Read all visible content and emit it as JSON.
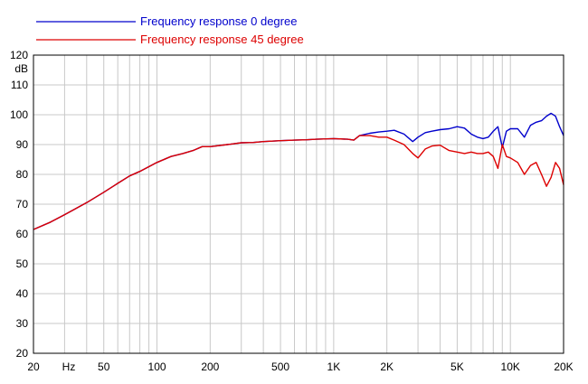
{
  "chart_data": {
    "type": "line",
    "title": "",
    "xlabel": "",
    "ylabel": "dB",
    "x_scale": "log",
    "x_unit_label": "Hz",
    "xlim": [
      20,
      20000
    ],
    "ylim": [
      20,
      120
    ],
    "grid": true,
    "legend_position": "top-left",
    "x_ticks": [
      {
        "value": 20,
        "label": "20"
      },
      {
        "value": 50,
        "label": "50"
      },
      {
        "value": 100,
        "label": "100"
      },
      {
        "value": 200,
        "label": "200"
      },
      {
        "value": 500,
        "label": "500"
      },
      {
        "value": 1000,
        "label": "1K"
      },
      {
        "value": 2000,
        "label": "2K"
      },
      {
        "value": 5000,
        "label": "5K"
      },
      {
        "value": 10000,
        "label": "10K"
      },
      {
        "value": 20000,
        "label": "20K"
      }
    ],
    "y_ticks": [
      {
        "value": 120,
        "label": "120"
      },
      {
        "value": 110,
        "label": "110"
      },
      {
        "value": 100,
        "label": "100"
      },
      {
        "value": 90,
        "label": "90"
      },
      {
        "value": 80,
        "label": "80"
      },
      {
        "value": 70,
        "label": "70"
      },
      {
        "value": 60,
        "label": "60"
      },
      {
        "value": 50,
        "label": "50"
      },
      {
        "value": 40,
        "label": "40"
      },
      {
        "value": 30,
        "label": "30"
      },
      {
        "value": 20,
        "label": "20"
      }
    ],
    "series": [
      {
        "name": "Frequency response 0 degree",
        "color": "#0000cc",
        "x": [
          20,
          25,
          30,
          40,
          50,
          60,
          70,
          80,
          100,
          120,
          140,
          160,
          180,
          200,
          250,
          300,
          350,
          400,
          500,
          600,
          700,
          800,
          1000,
          1200,
          1300,
          1400,
          1600,
          1800,
          2000,
          2200,
          2500,
          2800,
          3000,
          3300,
          3600,
          4000,
          4500,
          5000,
          5500,
          6000,
          6500,
          7000,
          7500,
          8000,
          8500,
          9000,
          9500,
          10000,
          11000,
          12000,
          13000,
          14000,
          15000,
          16000,
          17000,
          18000,
          19000,
          20000
        ],
        "y": [
          61.5,
          64.0,
          66.5,
          70.5,
          74.0,
          77.0,
          79.5,
          81.0,
          84.0,
          86.0,
          87.0,
          88.0,
          89.3,
          89.3,
          90.0,
          90.6,
          90.7,
          91.0,
          91.3,
          91.5,
          91.6,
          91.8,
          92.0,
          91.8,
          91.5,
          93.0,
          93.8,
          94.2,
          94.5,
          94.8,
          93.5,
          91.0,
          92.5,
          94.0,
          94.5,
          95.0,
          95.3,
          96.0,
          95.5,
          93.5,
          92.5,
          92.0,
          92.5,
          94.5,
          96.0,
          89.0,
          94.5,
          95.3,
          95.3,
          92.5,
          96.5,
          97.5,
          98.0,
          99.5,
          100.5,
          99.5,
          96.0,
          93.0
        ]
      },
      {
        "name": "Frequency response 45 degree",
        "color": "#dd0000",
        "x": [
          20,
          25,
          30,
          40,
          50,
          60,
          70,
          80,
          100,
          120,
          140,
          160,
          180,
          200,
          250,
          300,
          350,
          400,
          500,
          600,
          700,
          800,
          1000,
          1200,
          1300,
          1400,
          1600,
          1800,
          2000,
          2200,
          2500,
          2800,
          3000,
          3300,
          3600,
          4000,
          4500,
          5000,
          5500,
          6000,
          6500,
          7000,
          7500,
          8000,
          8500,
          9000,
          9500,
          10000,
          11000,
          12000,
          13000,
          14000,
          15000,
          16000,
          17000,
          18000,
          19000,
          20000
        ],
        "y": [
          61.5,
          64.0,
          66.5,
          70.5,
          74.0,
          77.0,
          79.5,
          81.0,
          84.0,
          86.0,
          87.0,
          88.0,
          89.3,
          89.3,
          90.0,
          90.6,
          90.7,
          91.0,
          91.3,
          91.5,
          91.6,
          91.8,
          92.0,
          91.8,
          91.5,
          93.0,
          93.0,
          92.5,
          92.5,
          91.5,
          90.0,
          87.0,
          85.5,
          88.5,
          89.5,
          89.8,
          88.0,
          87.5,
          87.0,
          87.5,
          87.0,
          87.0,
          87.5,
          86.0,
          82.0,
          90.0,
          86.0,
          85.5,
          84.0,
          80.0,
          83.0,
          84.0,
          80.0,
          76.0,
          79.0,
          84.0,
          82.0,
          76.5
        ]
      }
    ]
  }
}
